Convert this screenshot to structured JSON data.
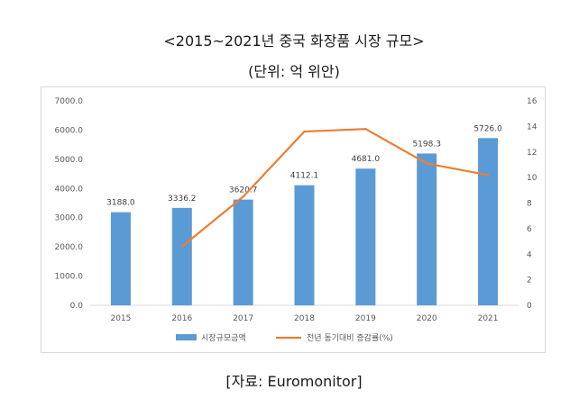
{
  "title": "<2015~2021년 중국 화장품 시장 규모>",
  "subtitle": "(단위: 억 위안)",
  "source": "[자료: Euromonitor]",
  "chart_data": {
    "type": "bar",
    "categories": [
      "2015",
      "2016",
      "2017",
      "2018",
      "2019",
      "2020",
      "2021"
    ],
    "series": [
      {
        "name": "시장규모금액",
        "type": "bar",
        "axis": "left",
        "color": "#5b9bd5",
        "values": [
          3188.0,
          3336.2,
          3620.7,
          4112.1,
          4681.0,
          5198.3,
          5726.0
        ],
        "labels": [
          "3188.0",
          "3336.2",
          "3620.7",
          "4112.1",
          "4681.0",
          "5198.3",
          "5726.0"
        ]
      },
      {
        "name": "전년 동기대비 증감률(%)",
        "type": "line",
        "axis": "right",
        "color": "#ed7d31",
        "values": [
          null,
          4.6,
          8.5,
          13.6,
          13.8,
          11.1,
          10.2
        ]
      }
    ],
    "y_left": {
      "min": 0,
      "max": 7000,
      "ticks": [
        "0.0",
        "1000.0",
        "2000.0",
        "3000.0",
        "4000.0",
        "5000.0",
        "6000.0",
        "7000.0"
      ]
    },
    "y_right": {
      "min": 0,
      "max": 16,
      "ticks": [
        "0",
        "2",
        "4",
        "6",
        "8",
        "10",
        "12",
        "14",
        "16"
      ]
    },
    "grid": false,
    "legend_position": "bottom"
  }
}
